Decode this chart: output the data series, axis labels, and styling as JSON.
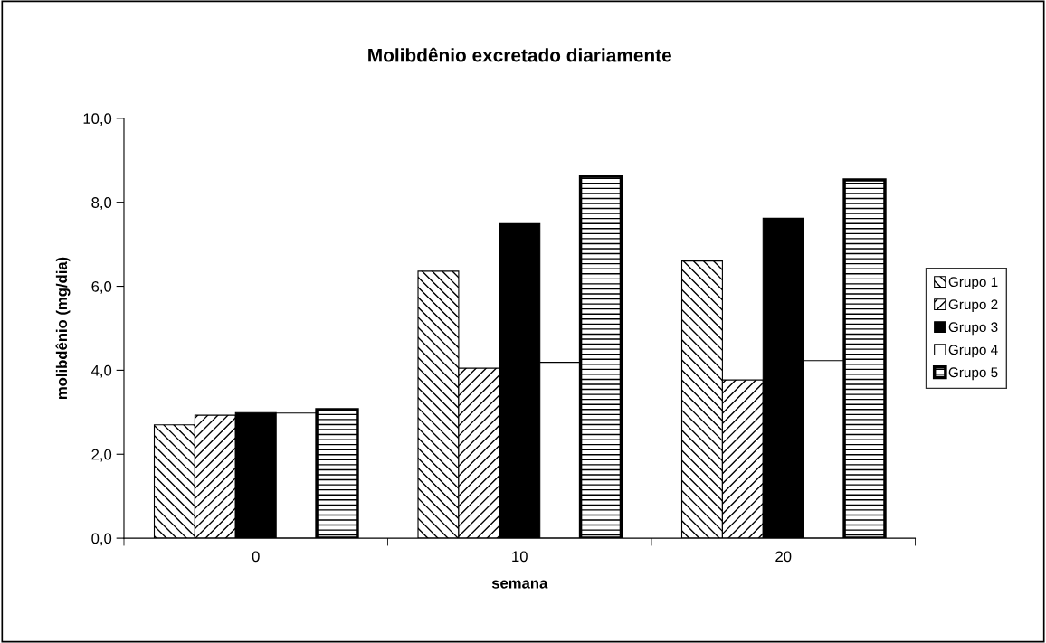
{
  "chart_data": {
    "type": "bar",
    "title": "Molibdênio excretado diariamente",
    "xlabel": "semana",
    "ylabel": "molibdênio (mg/dia)",
    "categories": [
      "0",
      "10",
      "20"
    ],
    "series": [
      {
        "name": "Grupo 1",
        "color": "#000000",
        "values": [
          2.7,
          6.36,
          6.6
        ]
      },
      {
        "name": "Grupo 2",
        "color": "#000000",
        "values": [
          2.93,
          4.05,
          3.77
        ]
      },
      {
        "name": "Grupo 3",
        "color": "#000000",
        "values": [
          2.99,
          7.49,
          7.62
        ]
      },
      {
        "name": "Grupo 4",
        "color": "#ffffff",
        "values": [
          2.98,
          4.19,
          4.23
        ]
      },
      {
        "name": "Grupo 5",
        "color": "#000000",
        "values": [
          3.06,
          8.62,
          8.53
        ]
      }
    ],
    "ylim": [
      0,
      10
    ],
    "yticks": [
      {
        "value": 0,
        "label": "0,0"
      },
      {
        "value": 2,
        "label": "2,0"
      },
      {
        "value": 4,
        "label": "4,0"
      },
      {
        "value": 6,
        "label": "6,0"
      },
      {
        "value": 8,
        "label": "8,0"
      },
      {
        "value": 10,
        "label": "10,0"
      }
    ],
    "grid": false,
    "legend": "right"
  }
}
